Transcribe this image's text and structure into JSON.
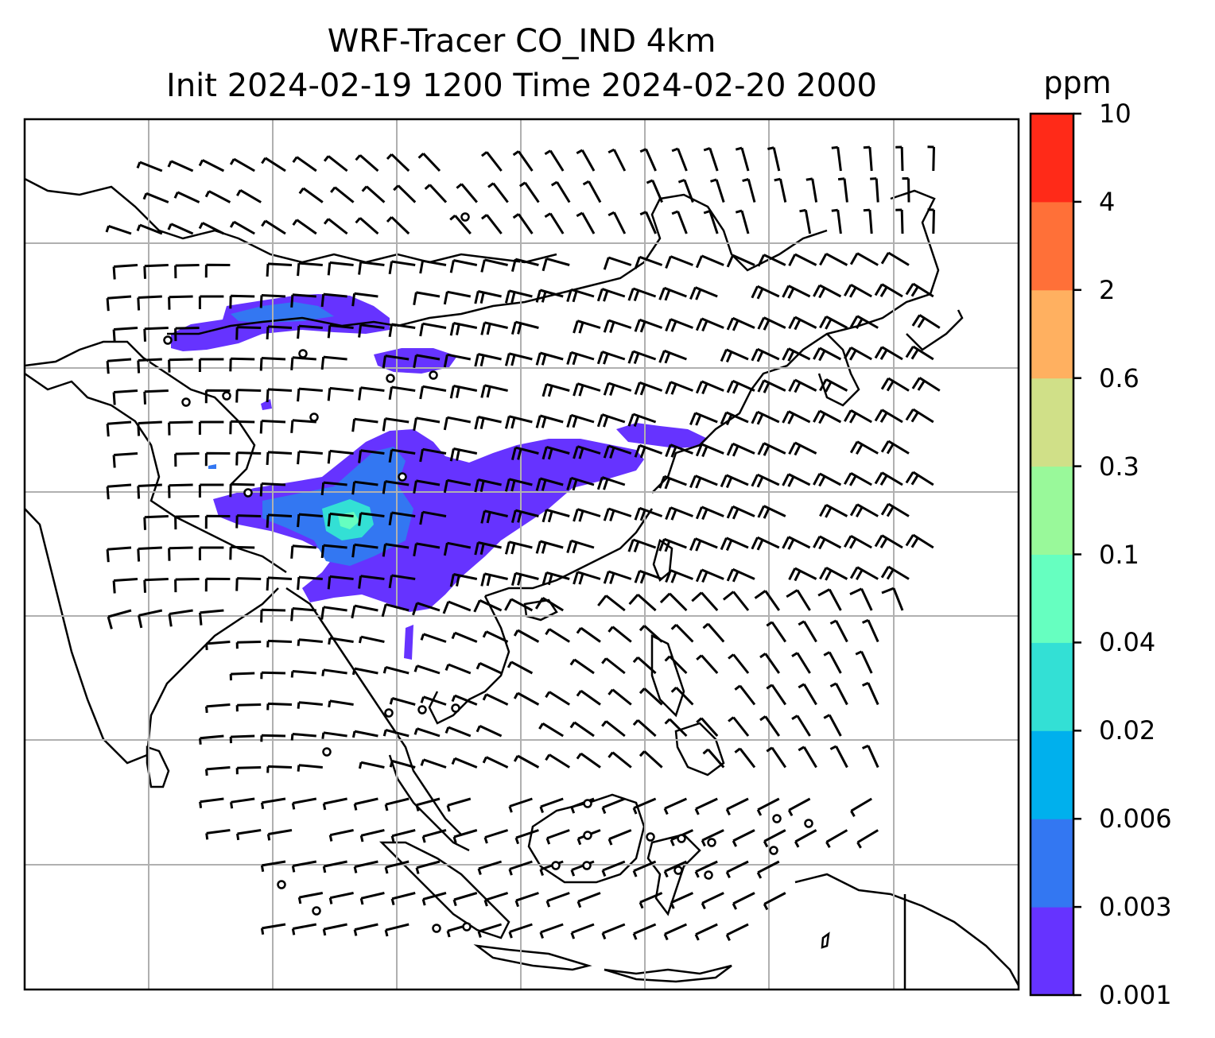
{
  "title": {
    "line1": "WRF-Tracer CO_IND 4km",
    "line2": "Init 2024-02-19 1200 Time 2024-02-20 2000"
  },
  "colorbar": {
    "unit": "ppm",
    "ticks": [
      "0.001",
      "0.003",
      "0.006",
      "0.02",
      "0.04",
      "0.1",
      "0.3",
      "0.6",
      "2",
      "4",
      "10"
    ],
    "colors": [
      "#6633ff",
      "#3377f2",
      "#00b0ed",
      "#33e0d5",
      "#66ffc0",
      "#99f99a",
      "#d0e088",
      "#ffb060",
      "#ff7038",
      "#ff2a18"
    ]
  },
  "map": {
    "layer_type": "tracer concentration contours with wind barbs",
    "coastline_color": "#000000",
    "grid_color": "#b0b0b0"
  }
}
